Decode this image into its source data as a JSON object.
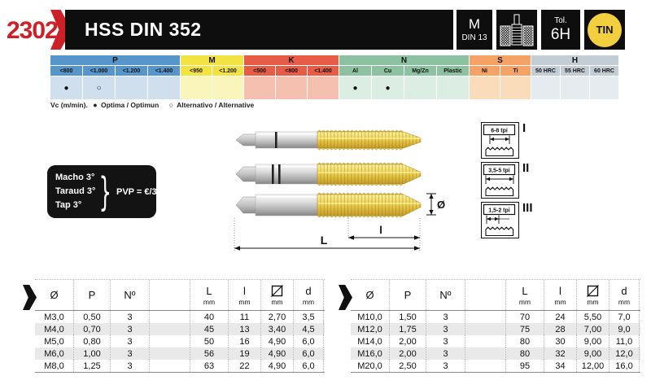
{
  "header": {
    "code": "2302",
    "title": "HSS DIN 352",
    "thread_type": "M",
    "thread_norm": "DIN 13",
    "tolerance_label": "Tol.",
    "tolerance_value": "6H",
    "coating": "TIN",
    "colors": {
      "accent_red": "#cc2127",
      "bar_black": "#0e0e0e",
      "tin_yellow": "#f2cf3e"
    }
  },
  "application_table": {
    "sections": [
      {
        "label": "P",
        "header_color": "#5796ca",
        "body_color": "#cfdfee",
        "cols": [
          {
            "label": "<800",
            "mark": "filled"
          },
          {
            "label": "<1.000",
            "mark": "open"
          },
          {
            "label": "<1.200",
            "mark": ""
          },
          {
            "label": "<1.400",
            "mark": ""
          }
        ]
      },
      {
        "label": "M",
        "header_color": "#f2e343",
        "body_color": "#f9f5bb",
        "cols": [
          {
            "label": "<950",
            "mark": ""
          },
          {
            "label": "<1.200",
            "mark": ""
          }
        ]
      },
      {
        "label": "K",
        "header_color": "#e65c47",
        "body_color": "#f6c0b1",
        "cols": [
          {
            "label": "<500",
            "mark": ""
          },
          {
            "label": "<800",
            "mark": ""
          },
          {
            "label": "<1.400",
            "mark": ""
          }
        ]
      },
      {
        "label": "N",
        "header_color": "#8cc2a2",
        "body_color": "#dcede3",
        "cols": [
          {
            "label": "Al",
            "mark": "filled"
          },
          {
            "label": "Cu",
            "mark": "filled"
          },
          {
            "label": "Mg/Zn",
            "mark": ""
          },
          {
            "label": "Plastic",
            "mark": ""
          }
        ]
      },
      {
        "label": "S",
        "header_color": "#f4a265",
        "body_color": "#fbdcba",
        "cols": [
          {
            "label": "Ni",
            "mark": ""
          },
          {
            "label": "Ti",
            "mark": ""
          }
        ]
      },
      {
        "label": "H",
        "header_color": "#c3cdd6",
        "body_color": "#e6ebef",
        "cols": [
          {
            "label": "50 HRC",
            "mark": ""
          },
          {
            "label": "55 HRC",
            "mark": ""
          },
          {
            "label": "60 HRC",
            "mark": ""
          }
        ]
      }
    ]
  },
  "legend": {
    "vc_label": "Vc (m/min).",
    "filled_symbol": "●",
    "optimal_label": "Optima / Optimun",
    "open_symbol": "○",
    "alternative_label": "Alternativo / Alternative"
  },
  "offer_note": {
    "lines": [
      "Macho 3°",
      "Taraud 3°",
      "Tap 3°"
    ],
    "brace": "}",
    "price_label": "PVP = €/3"
  },
  "diagram": {
    "overall_length_label": "L",
    "thread_length_label": "l",
    "diameter_label": "Ø"
  },
  "chamfer_boxes": [
    {
      "tpi": "6-8 tpi",
      "numeral": "I"
    },
    {
      "tpi": "3,5-5 tpi",
      "numeral": "II"
    },
    {
      "tpi": "1,5-2 tpi",
      "numeral": "III"
    }
  ],
  "spec_tables": {
    "columns": [
      {
        "key": "diameter",
        "label": "Ø"
      },
      {
        "key": "pitch",
        "label": "P"
      },
      {
        "key": "number",
        "label": "Nº"
      },
      {
        "key": "gap",
        "label": ""
      },
      {
        "key": "overall_length",
        "label": "L",
        "unit": "mm"
      },
      {
        "key": "thread_length",
        "label": "l",
        "unit": "mm"
      },
      {
        "key": "square_width",
        "label": "",
        "unit": "mm",
        "icon": "square-drive-icon"
      },
      {
        "key": "shank_diameter",
        "label": "d",
        "unit": "mm"
      }
    ],
    "left_rows": [
      [
        "M3,0",
        "0,50",
        "3",
        "40",
        "11",
        "2,70",
        "3,5"
      ],
      [
        "M4,0",
        "0,70",
        "3",
        "45",
        "13",
        "3,40",
        "4,5"
      ],
      [
        "M5,0",
        "0,80",
        "3",
        "50",
        "16",
        "4,90",
        "6,0"
      ],
      [
        "M6,0",
        "1,00",
        "3",
        "56",
        "19",
        "4,90",
        "6,0"
      ],
      [
        "M8,0",
        "1,25",
        "3",
        "63",
        "22",
        "4,90",
        "6,0"
      ]
    ],
    "right_rows": [
      [
        "M10,0",
        "1,50",
        "3",
        "70",
        "24",
        "5,50",
        "7,0"
      ],
      [
        "M12,0",
        "1,75",
        "3",
        "75",
        "28",
        "7,00",
        "9,0"
      ],
      [
        "M14,0",
        "2,00",
        "3",
        "80",
        "30",
        "9,00",
        "11,0"
      ],
      [
        "M16,0",
        "2,00",
        "3",
        "80",
        "32",
        "9,00",
        "12,0"
      ],
      [
        "M20,0",
        "2,50",
        "3",
        "95",
        "34",
        "12,00",
        "16,0"
      ]
    ]
  }
}
